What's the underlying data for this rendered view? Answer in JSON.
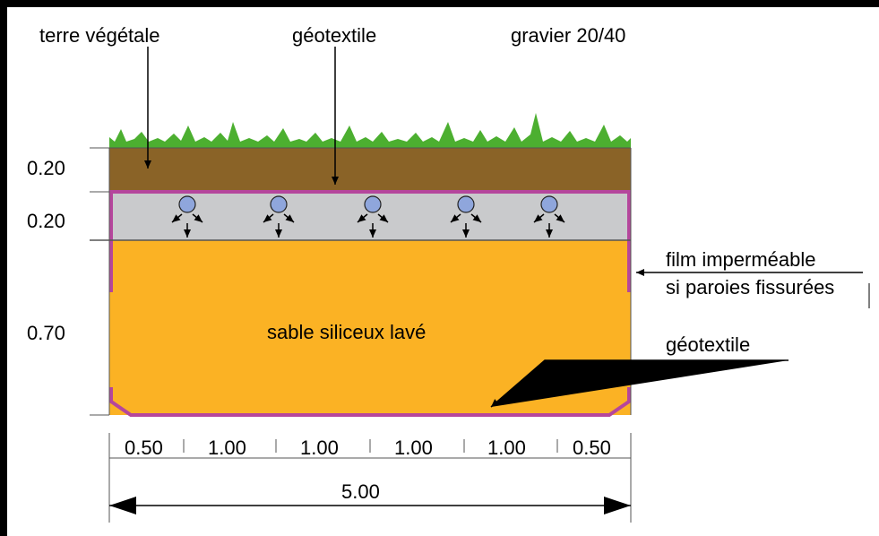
{
  "labels": {
    "topsoil": "terre végétale",
    "geotextile_top": "géotextile",
    "gravel": "gravier 20/40",
    "film_line1": "film imperméable",
    "film_line2": "si paroies fissurées",
    "sand": "sable siliceux lavé",
    "geotextile_bottom": "géotextile"
  },
  "layer_depths": [
    "0.20",
    "0.20",
    "0.70"
  ],
  "widths": [
    "0.50",
    "1.00",
    "1.00",
    "1.00",
    "1.00",
    "0.50"
  ],
  "total_width": "5.00",
  "colors": {
    "grass": "#4caf30",
    "topsoil": "#8a6327",
    "gravel": "#c9cacc",
    "sand": "#fbb224",
    "membrane": "#b5469c",
    "pipe": "#8fa6dc"
  },
  "icons": {
    "pipe": "drain-pipe-icon",
    "arrow": "arrow-icon"
  },
  "pipe_count": 5
}
